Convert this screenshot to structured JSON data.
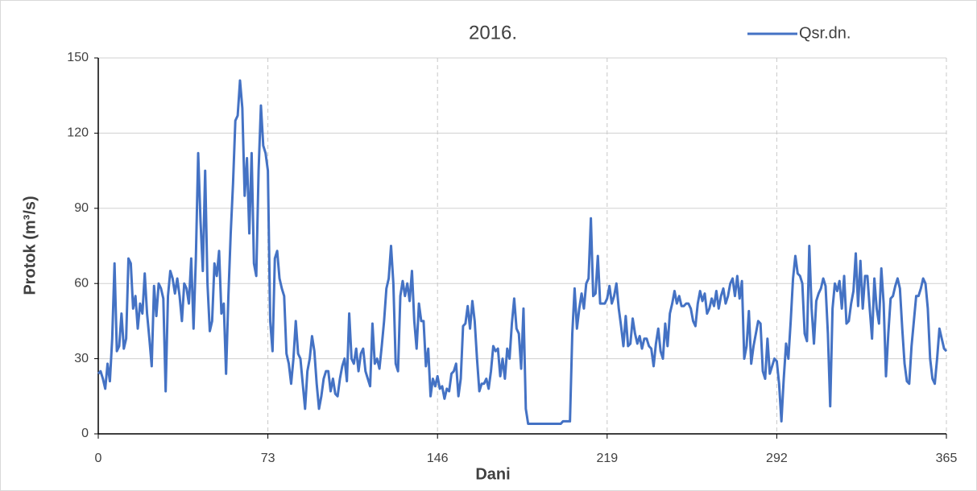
{
  "chart_data": {
    "type": "line",
    "title": "2016.",
    "xlabel": "Dani",
    "ylabel": "Protok (m³/s)",
    "x": [
      0,
      1,
      2,
      3,
      4,
      5,
      6,
      7,
      8,
      9,
      10,
      11,
      12,
      13,
      14,
      15,
      16,
      17,
      18,
      19,
      20,
      21,
      22,
      23,
      24,
      25,
      26,
      27,
      28,
      29,
      30,
      31,
      32,
      33,
      34,
      35,
      36,
      37,
      38,
      39,
      40,
      41,
      42,
      43,
      44,
      45,
      46,
      47,
      48,
      49,
      50,
      51,
      52,
      53,
      54,
      55,
      56,
      57,
      58,
      59,
      60,
      61,
      62,
      63,
      64,
      65,
      66,
      67,
      68,
      69,
      70,
      71,
      72,
      73,
      74,
      75,
      76,
      77,
      78,
      79,
      80,
      81,
      82,
      83,
      84,
      85,
      86,
      87,
      88,
      89,
      90,
      91,
      92,
      93,
      94,
      95,
      96,
      97,
      98,
      99,
      100,
      101,
      102,
      103,
      104,
      105,
      106,
      107,
      108,
      109,
      110,
      111,
      112,
      113,
      114,
      115,
      116,
      117,
      118,
      119,
      120,
      121,
      122,
      123,
      124,
      125,
      126,
      127,
      128,
      129,
      130,
      131,
      132,
      133,
      134,
      135,
      136,
      137,
      138,
      139,
      140,
      141,
      142,
      143,
      144,
      145,
      146,
      147,
      148,
      149,
      150,
      151,
      152,
      153,
      154,
      155,
      156,
      157,
      158,
      159,
      160,
      161,
      162,
      163,
      164,
      165,
      166,
      167,
      168,
      169,
      170,
      171,
      172,
      173,
      174,
      175,
      176,
      177,
      178,
      179,
      180,
      181,
      182,
      183,
      184,
      185,
      186,
      187,
      188,
      189,
      190,
      191,
      192,
      193,
      194,
      195,
      196,
      197,
      198,
      199,
      200,
      201,
      202,
      203,
      204,
      205,
      206,
      207,
      208,
      209,
      210,
      211,
      212,
      213,
      214,
      215,
      216,
      217,
      218,
      219,
      220,
      221,
      222,
      223,
      224,
      225,
      226,
      227,
      228,
      229,
      230,
      231,
      232,
      233,
      234,
      235,
      236,
      237,
      238,
      239,
      240,
      241,
      242,
      243,
      244,
      245,
      246,
      247,
      248,
      249,
      250,
      251,
      252,
      253,
      254,
      255,
      256,
      257,
      258,
      259,
      260,
      261,
      262,
      263,
      264,
      265,
      266,
      267,
      268,
      269,
      270,
      271,
      272,
      273,
      274,
      275,
      276,
      277,
      278,
      279,
      280,
      281,
      282,
      283,
      284,
      285,
      286,
      287,
      288,
      289,
      290,
      291,
      292,
      293,
      294,
      295,
      296,
      297,
      298,
      299,
      300,
      301,
      302,
      303,
      304,
      305,
      306,
      307,
      308,
      309,
      310,
      311,
      312,
      313,
      314,
      315,
      316,
      317,
      318,
      319,
      320,
      321,
      322,
      323,
      324,
      325,
      326,
      327,
      328,
      329,
      330,
      331,
      332,
      333,
      334,
      335,
      336,
      337,
      338,
      339,
      340,
      341,
      342,
      343,
      344,
      345,
      346,
      347,
      348,
      349,
      350,
      351,
      352,
      353,
      354,
      355,
      356,
      357,
      358,
      359,
      360,
      361,
      362,
      363,
      364,
      365
    ],
    "series": [
      {
        "name": "Qsr.dn.",
        "color": "#4472c4",
        "values": [
          24,
          25,
          22,
          18,
          28,
          21,
          38,
          68,
          33,
          35,
          48,
          34,
          38,
          70,
          68,
          50,
          55,
          42,
          52,
          48,
          64,
          48,
          38,
          27,
          59,
          47,
          60,
          58,
          54,
          17,
          55,
          65,
          62,
          56,
          62,
          55,
          45,
          60,
          58,
          52,
          70,
          42,
          70,
          112,
          85,
          65,
          105,
          60,
          41,
          45,
          68,
          63,
          73,
          48,
          52,
          24,
          55,
          80,
          100,
          125,
          127,
          141,
          130,
          95,
          110,
          80,
          112,
          68,
          63,
          105,
          131,
          115,
          112,
          105,
          45,
          33,
          70,
          73,
          62,
          58,
          55,
          32,
          28,
          20,
          30,
          45,
          32,
          30,
          20,
          10,
          25,
          30,
          39,
          33,
          20,
          10,
          15,
          22,
          25,
          25,
          17,
          22,
          16,
          15,
          22,
          27,
          30,
          21,
          48,
          30,
          28,
          34,
          25,
          32,
          34,
          25,
          22,
          19,
          44,
          28,
          30,
          26,
          35,
          45,
          58,
          62,
          75,
          60,
          28,
          25,
          55,
          61,
          55,
          60,
          53,
          65,
          45,
          34,
          52,
          45,
          45,
          27,
          34,
          15,
          22,
          19,
          23,
          18,
          19,
          14,
          18,
          17,
          24,
          25,
          28,
          15,
          22,
          43,
          44,
          51,
          42,
          53,
          45,
          30,
          17,
          20,
          20,
          22,
          18,
          25,
          35,
          33,
          34,
          23,
          30,
          22,
          34,
          30,
          44,
          54,
          42,
          40,
          26,
          50,
          10,
          4,
          4,
          4,
          4,
          4,
          4,
          4,
          4,
          4,
          4,
          4,
          4,
          4,
          4,
          4,
          5,
          5,
          5,
          5,
          40,
          58,
          42,
          50,
          56,
          50,
          60,
          62,
          86,
          55,
          56,
          71,
          52,
          52,
          52,
          54,
          59,
          52,
          55,
          60,
          50,
          43,
          35,
          47,
          35,
          36,
          46,
          40,
          36,
          39,
          34,
          38,
          38,
          35,
          34,
          27,
          36,
          42,
          33,
          30,
          44,
          35,
          48,
          52,
          57,
          52,
          55,
          51,
          51,
          52,
          52,
          50,
          45,
          43,
          52,
          57,
          53,
          56,
          48,
          50,
          54,
          51,
          57,
          50,
          55,
          58,
          52,
          55,
          60,
          62,
          55,
          63,
          54,
          61,
          30,
          35,
          49,
          28,
          35,
          40,
          45,
          44,
          25,
          22,
          38,
          24,
          27,
          30,
          29,
          20,
          5,
          22,
          36,
          30,
          45,
          62,
          71,
          64,
          63,
          60,
          40,
          37,
          75,
          50,
          36,
          53,
          56,
          58,
          62,
          59,
          40,
          11,
          50,
          60,
          57,
          61,
          50,
          63,
          44,
          45,
          52,
          57,
          72,
          51,
          69,
          50,
          63,
          63,
          50,
          38,
          62,
          50,
          44,
          66,
          52,
          23,
          40,
          54,
          55,
          59,
          62,
          58,
          42,
          28,
          21,
          20,
          35,
          45,
          55,
          55,
          58,
          62,
          60,
          50,
          30,
          22,
          20,
          30,
          42,
          38,
          34,
          33
        ]
      }
    ],
    "xlim": [
      0,
      365
    ],
    "xticks": [
      0,
      73,
      146,
      219,
      292,
      365
    ],
    "ylim": [
      0,
      150
    ],
    "yticks": [
      0,
      30,
      60,
      90,
      120,
      150
    ],
    "grid": true,
    "legend": "top-right"
  }
}
